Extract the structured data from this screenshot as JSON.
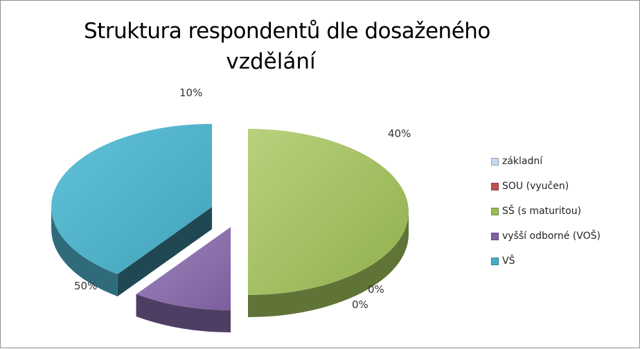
{
  "chart_data": {
    "type": "pie",
    "title_lines": [
      "Struktura respondentů dle dosaženého",
      "vzdělání"
    ],
    "categories": [
      "základní",
      "SOU (vyučen)",
      "SŠ (s maturitou)",
      "vyšší odborné (VOŠ)",
      "VŠ"
    ],
    "values": [
      0,
      0,
      50,
      10,
      40
    ],
    "data_labels": [
      "0%",
      "0%",
      "50%",
      "10%",
      "40%"
    ],
    "colors": [
      "#c6d9f1",
      "#c0504d",
      "#9bbb59",
      "#8064a2",
      "#4bacc6"
    ],
    "legend_position": "right",
    "style": "3d-exploded"
  }
}
